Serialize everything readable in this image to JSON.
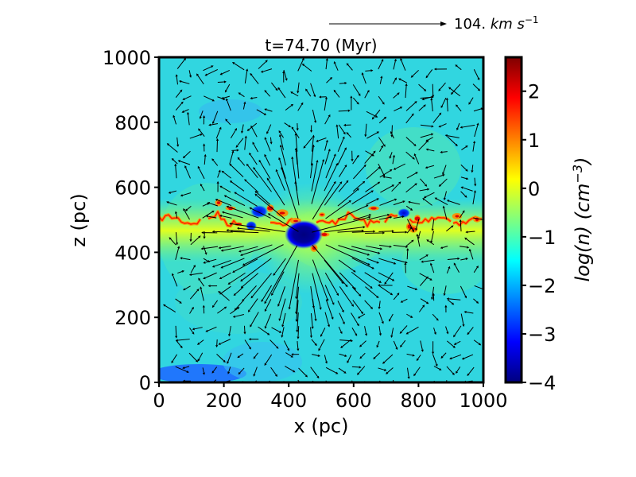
{
  "chart_data": {
    "type": "heatmap",
    "title": "t=74.70 (Myr)",
    "xlabel": "x (pc)",
    "ylabel": "z (pc)",
    "xlim": [
      0,
      1000
    ],
    "ylim": [
      0,
      1000
    ],
    "xticks": [
      "0",
      "200",
      "400",
      "600",
      "800",
      "1000"
    ],
    "yticks": [
      "0",
      "200",
      "400",
      "600",
      "800",
      "1000"
    ],
    "colorbar": {
      "label": "log(n) (cm⁻³)",
      "label_parts": {
        "base": "log(n)",
        "unit": "cm",
        "exp": "−3"
      },
      "range": [
        -4,
        2.7
      ],
      "ticks": [
        "−4",
        "−3",
        "−2",
        "−1",
        "0",
        "1",
        "2"
      ],
      "colormap": "jet"
    },
    "quiver_key": {
      "value": "104.",
      "unit": "km s",
      "exp": "−1"
    },
    "background_logn": -1.6,
    "features": [
      {
        "name": "midplane filament",
        "z_pc": 500,
        "x_range_pc": [
          0,
          1000
        ],
        "logn": 0.5
      },
      {
        "name": "low-density bubble",
        "x_pc": 445,
        "z_pc": 455,
        "logn": -3.8
      },
      {
        "name": "small cavity",
        "x_pc": 310,
        "z_pc": 525,
        "logn": -3.0
      },
      {
        "name": "small cavity",
        "x_pc": 760,
        "z_pc": 520,
        "logn": -2.6
      },
      {
        "name": "dense clump",
        "x_pc": 560,
        "z_pc": 485,
        "logn": 2.0
      },
      {
        "name": "dense clump",
        "x_pc": 800,
        "z_pc": 490,
        "logn": 2.1
      }
    ],
    "grid": false
  },
  "colors": {
    "background_field": "#31d6e0",
    "colormap_stops": [
      "#00007f",
      "#0000ff",
      "#007fff",
      "#00ffff",
      "#7fff7f",
      "#ffff00",
      "#ff7f00",
      "#ff0000",
      "#7f0000"
    ]
  }
}
